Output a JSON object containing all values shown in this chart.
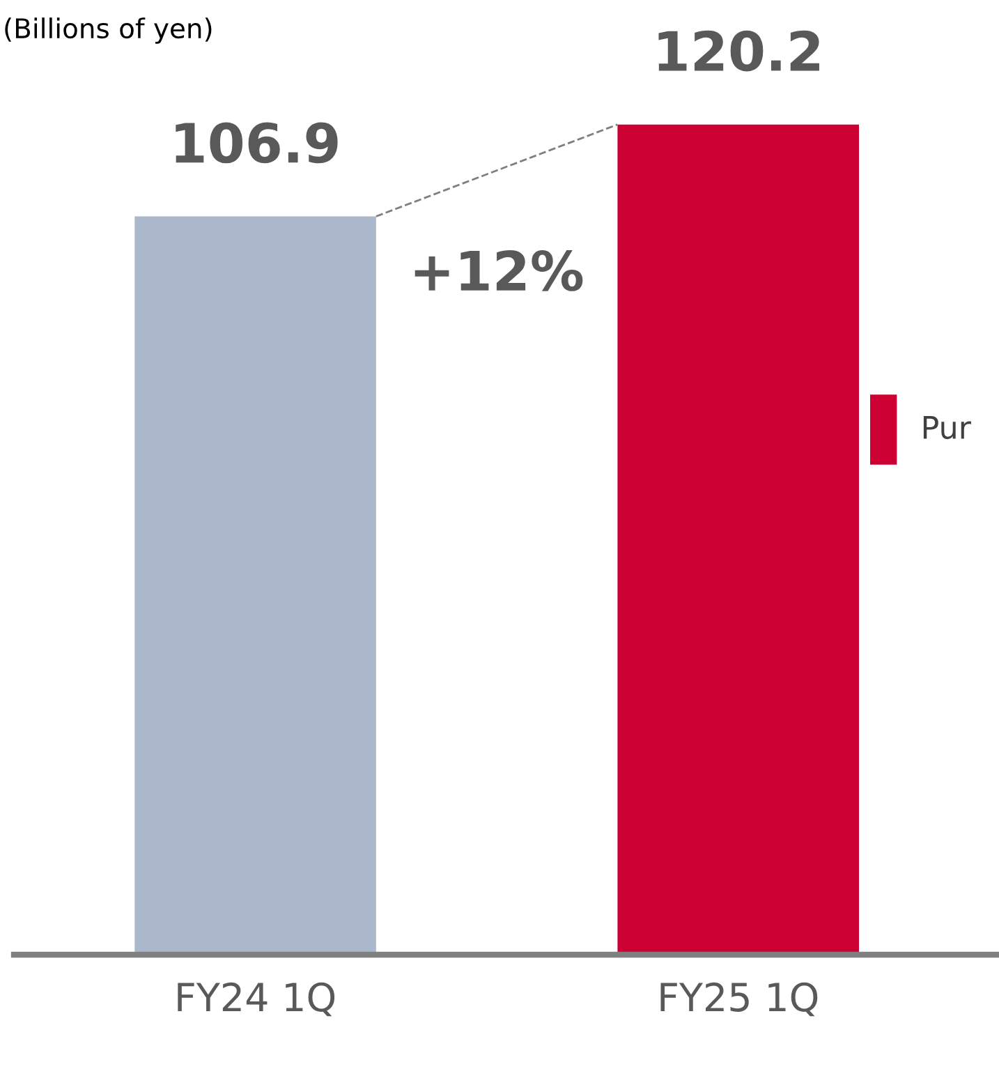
{
  "chart_data": {
    "type": "bar",
    "categories": [
      "FY24 1Q",
      "FY25 1Q"
    ],
    "series": [
      {
        "name": "Pur",
        "colors": [
          "#abb7ca",
          "#cc0033"
        ],
        "values": [
          106.9,
          120.2
        ]
      }
    ],
    "data_labels": true,
    "legend": "right",
    "grid": false,
    "annotations": [
      "(Billions of yen)",
      "+12%"
    ]
  }
}
